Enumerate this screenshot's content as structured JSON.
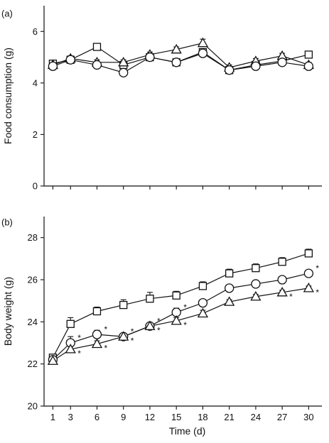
{
  "chart_data": [
    {
      "panel": "(a)",
      "type": "line",
      "xlabel": "",
      "ylabel": "Food consumption (g)",
      "x": [
        1,
        3,
        6,
        9,
        12,
        15,
        18,
        21,
        24,
        27,
        30
      ],
      "xlim": [
        0,
        31.5
      ],
      "ylim": [
        0,
        7
      ],
      "yticks": [
        0,
        2,
        4,
        6
      ],
      "series": [
        {
          "marker": "square",
          "values": [
            4.75,
            4.9,
            5.4,
            4.7,
            5.0,
            4.8,
            5.2,
            4.5,
            4.7,
            4.85,
            5.1
          ],
          "err": [
            0.1,
            0.1,
            0.12,
            0.1,
            0.1,
            0.1,
            0.1,
            0.1,
            0.1,
            0.1,
            0.1
          ]
        },
        {
          "marker": "triangle",
          "values": [
            4.7,
            4.95,
            4.8,
            4.8,
            5.1,
            5.3,
            5.55,
            4.6,
            4.85,
            5.05,
            4.7
          ],
          "err": [
            0.1,
            0.1,
            0.1,
            0.1,
            0.1,
            0.1,
            0.15,
            0.1,
            0.1,
            0.1,
            0.1
          ]
        },
        {
          "marker": "circle",
          "values": [
            4.65,
            4.9,
            4.7,
            4.4,
            5.0,
            4.8,
            5.15,
            4.5,
            4.65,
            4.8,
            4.65
          ],
          "err": [
            0.1,
            0.1,
            0.1,
            0.1,
            0.1,
            0.1,
            0.1,
            0.1,
            0.1,
            0.1,
            0.1
          ]
        }
      ]
    },
    {
      "panel": "(b)",
      "type": "line",
      "xlabel": "Time (d)",
      "ylabel": "Body weight (g)",
      "x": [
        1,
        3,
        6,
        9,
        12,
        15,
        18,
        21,
        24,
        27,
        30
      ],
      "xticks": [
        "1",
        "3",
        "6",
        "9",
        "12",
        "15",
        "18",
        "21",
        "24",
        "27",
        "30"
      ],
      "xlim": [
        0,
        31.5
      ],
      "ylim": [
        20,
        29
      ],
      "yticks": [
        20,
        22,
        24,
        26,
        28
      ],
      "series": [
        {
          "marker": "square",
          "values": [
            22.3,
            23.9,
            24.5,
            24.8,
            25.1,
            25.25,
            25.7,
            26.3,
            26.55,
            26.85,
            27.25
          ],
          "err": [
            0.15,
            0.3,
            0.2,
            0.25,
            0.3,
            0.2,
            0.2,
            0.2,
            0.2,
            0.2,
            0.2
          ]
        },
        {
          "marker": "circle",
          "values": [
            22.2,
            23.0,
            23.4,
            23.3,
            23.8,
            24.45,
            24.9,
            25.6,
            25.8,
            26.0,
            26.3
          ],
          "err": [
            0.1,
            0.3,
            0.2,
            0.15,
            0.15,
            0.2,
            0.15,
            0.15,
            0.15,
            0.15,
            0.15
          ]
        },
        {
          "marker": "triangle",
          "values": [
            22.15,
            22.7,
            22.95,
            23.3,
            23.8,
            24.05,
            24.4,
            24.95,
            25.2,
            25.4,
            25.6
          ],
          "err": [
            0.1,
            0.15,
            0.15,
            0.15,
            0.15,
            0.15,
            0.15,
            0.1,
            0.1,
            0.1,
            0.1
          ]
        }
      ],
      "significance_marker": "*",
      "significance": [
        {
          "series": "circle",
          "x": [
            3,
            6,
            9,
            12,
            15,
            30
          ]
        },
        {
          "series": "triangle",
          "x": [
            3,
            6,
            9,
            12,
            15,
            27,
            30
          ]
        }
      ]
    }
  ]
}
